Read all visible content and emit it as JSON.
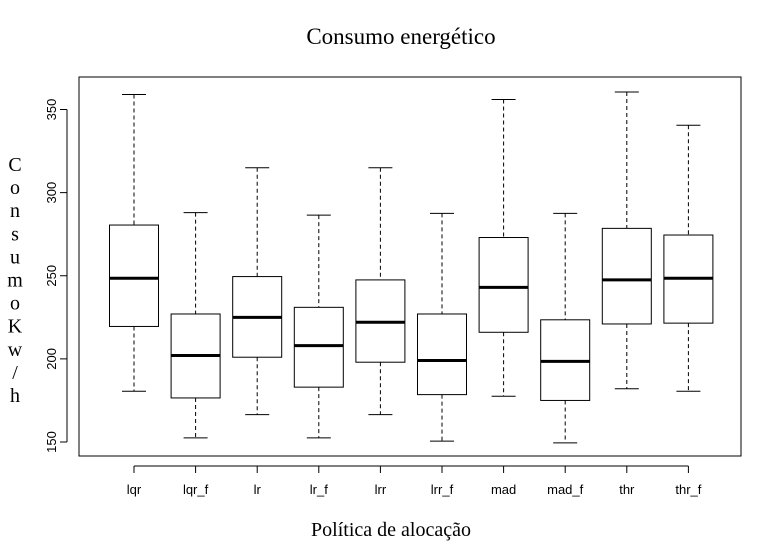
{
  "chart_data": {
    "type": "boxplot",
    "title": "Consumo energético",
    "xlabel": "Política de alocação",
    "ylabel": "Consumo Kw/h",
    "ylim": [
      140,
      375
    ],
    "yticks": [
      150,
      200,
      250,
      300,
      350
    ],
    "categories": [
      "lqr",
      "lqr_f",
      "lr",
      "lr_f",
      "lrr",
      "lrr_f",
      "mad",
      "mad_f",
      "thr",
      "thr_f"
    ],
    "boxes": [
      {
        "min": 180.5,
        "q1": 219.5,
        "median": 248.5,
        "q3": 280.5,
        "max": 359
      },
      {
        "min": 152.5,
        "q1": 176.5,
        "median": 202,
        "q3": 227,
        "max": 288
      },
      {
        "min": 166.5,
        "q1": 201,
        "median": 225,
        "q3": 249.5,
        "max": 315
      },
      {
        "min": 152.5,
        "q1": 183,
        "median": 208,
        "q3": 231,
        "max": 286.5
      },
      {
        "min": 166.5,
        "q1": 198,
        "median": 222,
        "q3": 247.5,
        "max": 315
      },
      {
        "min": 150.5,
        "q1": 178.5,
        "median": 199,
        "q3": 227,
        "max": 287.5
      },
      {
        "min": 177.5,
        "q1": 216,
        "median": 243,
        "q3": 273,
        "max": 356
      },
      {
        "min": 149.5,
        "q1": 175,
        "median": 198.5,
        "q3": 223.5,
        "max": 287.5
      },
      {
        "min": 182,
        "q1": 221,
        "median": 247.5,
        "q3": 278.5,
        "max": 360.5
      },
      {
        "min": 180.5,
        "q1": 221.5,
        "median": 248.5,
        "q3": 274.5,
        "max": 340.5
      }
    ],
    "grid": false,
    "legend": "none",
    "colors": {
      "box_fill": "#ffffff",
      "stroke": "#000000"
    }
  }
}
